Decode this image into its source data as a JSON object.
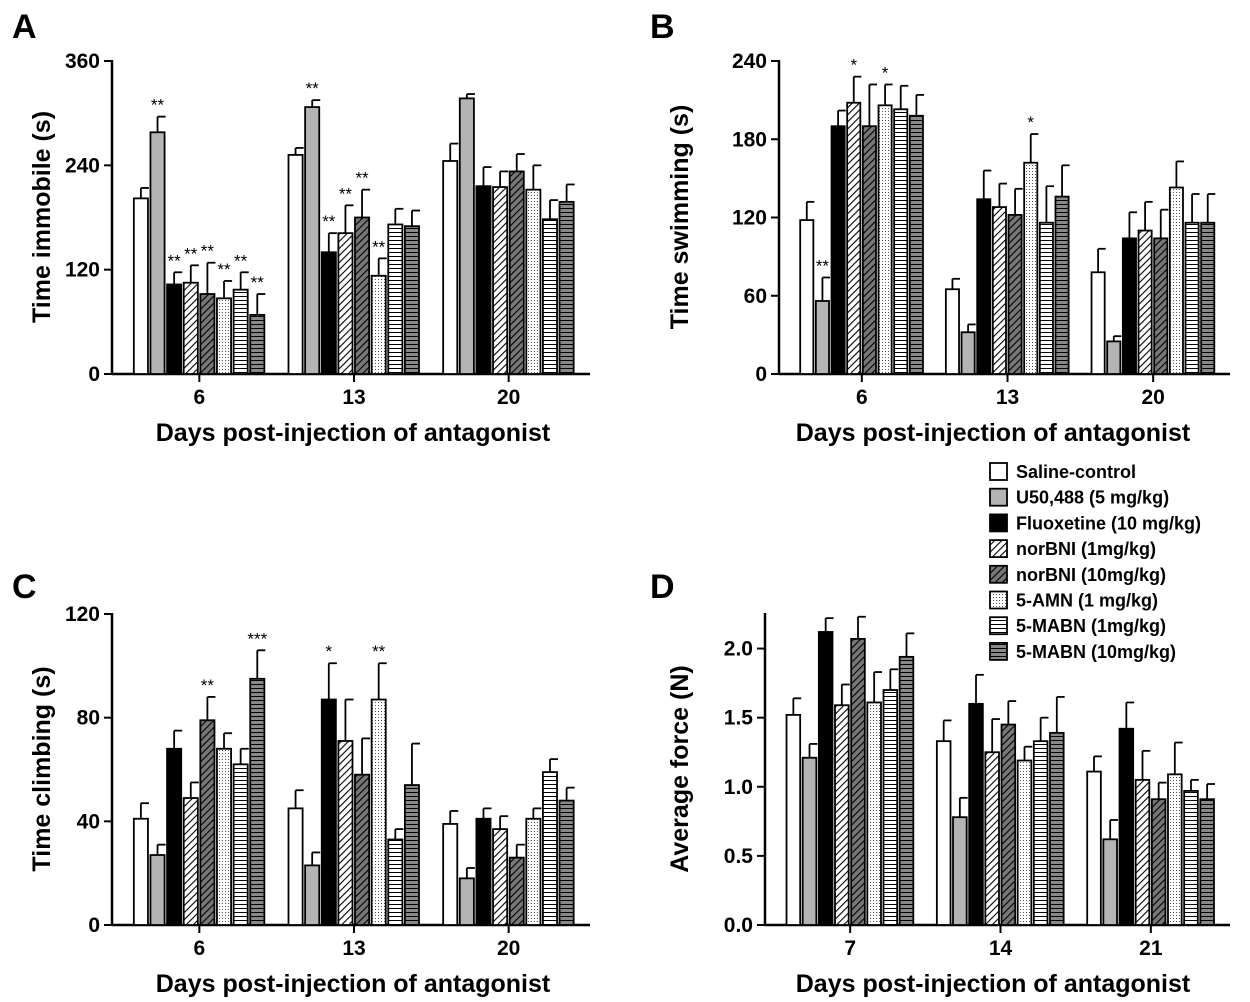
{
  "series_styles": [
    {
      "fill": "white",
      "color": "#ffffff"
    },
    {
      "fill": "gray",
      "color": "#b4b4b4"
    },
    {
      "fill": "black",
      "color": "#000000"
    },
    {
      "fill": "diag",
      "color": "#ffffff"
    },
    {
      "fill": "diag-dark",
      "color": "#777777"
    },
    {
      "fill": "dots",
      "color": "#ffffff"
    },
    {
      "fill": "hlines",
      "color": "#ffffff"
    },
    {
      "fill": "hlines-dark",
      "color": "#888888"
    }
  ],
  "legend": {
    "entries": [
      "Saline-control",
      "U50,488 (5 mg/kg)",
      "Fluoxetine (10 mg/kg)",
      "norBNI (1mg/kg)",
      "norBNI (10mg/kg)",
      "5-AMN (1 mg/kg)",
      "5-MABN (1mg/kg)",
      "5-MABN (10mg/kg)"
    ]
  },
  "chart_data": [
    {
      "panel": "A",
      "type": "bar",
      "categories": [
        "6",
        "13",
        "20"
      ],
      "xlabel": "Days post-injection of antagonist",
      "ylabel": "Time immobile (s)",
      "ylim": [
        0,
        360
      ],
      "yticks": [
        "0",
        "120",
        "240",
        "360"
      ],
      "series": [
        {
          "name": "Saline-control",
          "values": [
            202,
            252,
            245
          ],
          "errors": [
            12,
            8,
            20
          ],
          "sig": [
            "",
            "",
            ""
          ]
        },
        {
          "name": "U50,488 (5 mg/kg)",
          "values": [
            278,
            307,
            317
          ],
          "errors": [
            18,
            8,
            5
          ],
          "sig": [
            "**",
            "**",
            ""
          ]
        },
        {
          "name": "Fluoxetine (10 mg/kg)",
          "values": [
            103,
            140,
            216
          ],
          "errors": [
            14,
            22,
            22
          ],
          "sig": [
            "**",
            "**",
            ""
          ]
        },
        {
          "name": "norBNI (1mg/kg)",
          "values": [
            105,
            162,
            215
          ],
          "errors": [
            20,
            32,
            18
          ],
          "sig": [
            "**",
            "**",
            ""
          ]
        },
        {
          "name": "norBNI (10mg/kg)",
          "values": [
            92,
            180,
            233
          ],
          "errors": [
            36,
            32,
            20
          ],
          "sig": [
            "**",
            "**",
            ""
          ]
        },
        {
          "name": "5-AMN (1 mg/kg)",
          "values": [
            87,
            113,
            212
          ],
          "errors": [
            20,
            20,
            28
          ],
          "sig": [
            "**",
            "**",
            ""
          ]
        },
        {
          "name": "5-MABN (1mg/kg)",
          "values": [
            97,
            172,
            178
          ],
          "errors": [
            20,
            18,
            22
          ],
          "sig": [
            "**",
            "",
            ""
          ]
        },
        {
          "name": "5-MABN (10mg/kg)",
          "values": [
            68,
            170,
            198
          ],
          "errors": [
            24,
            18,
            20
          ],
          "sig": [
            "**",
            "",
            ""
          ]
        }
      ]
    },
    {
      "panel": "B",
      "type": "bar",
      "categories": [
        "6",
        "13",
        "20"
      ],
      "xlabel": "Days post-injection of antagonist",
      "ylabel": "Time swimming (s)",
      "ylim": [
        0,
        240
      ],
      "yticks": [
        "0",
        "60",
        "120",
        "180",
        "240"
      ],
      "series": [
        {
          "name": "Saline-control",
          "values": [
            118,
            65,
            78
          ],
          "errors": [
            14,
            8,
            18
          ],
          "sig": [
            "",
            "",
            ""
          ]
        },
        {
          "name": "U50,488 (5 mg/kg)",
          "values": [
            56,
            32,
            25
          ],
          "errors": [
            18,
            6,
            4
          ],
          "sig": [
            "**",
            "",
            ""
          ]
        },
        {
          "name": "Fluoxetine (10 mg/kg)",
          "values": [
            190,
            134,
            104
          ],
          "errors": [
            12,
            22,
            20
          ],
          "sig": [
            "",
            "",
            ""
          ]
        },
        {
          "name": "norBNI (1mg/kg)",
          "values": [
            208,
            128,
            110
          ],
          "errors": [
            20,
            18,
            22
          ],
          "sig": [
            "*",
            "",
            ""
          ]
        },
        {
          "name": "norBNI (10mg/kg)",
          "values": [
            190,
            122,
            104
          ],
          "errors": [
            32,
            20,
            22
          ],
          "sig": [
            "",
            "",
            ""
          ]
        },
        {
          "name": "5-AMN (1 mg/kg)",
          "values": [
            206,
            162,
            143
          ],
          "errors": [
            16,
            22,
            20
          ],
          "sig": [
            "*",
            "*",
            ""
          ]
        },
        {
          "name": "5-MABN (1mg/kg)",
          "values": [
            203,
            116,
            116
          ],
          "errors": [
            18,
            28,
            22
          ],
          "sig": [
            "",
            "",
            ""
          ]
        },
        {
          "name": "5-MABN (10mg/kg)",
          "values": [
            198,
            136,
            116
          ],
          "errors": [
            16,
            24,
            22
          ],
          "sig": [
            "",
            "",
            ""
          ]
        }
      ]
    },
    {
      "panel": "C",
      "type": "bar",
      "categories": [
        "6",
        "13",
        "20"
      ],
      "xlabel": "Days post-injection of antagonist",
      "ylabel": "Time climbing (s)",
      "ylim": [
        0,
        120
      ],
      "yticks": [
        "0",
        "40",
        "80",
        "120"
      ],
      "series": [
        {
          "name": "Saline-control",
          "values": [
            41,
            45,
            39
          ],
          "errors": [
            6,
            7,
            5
          ],
          "sig": [
            "",
            "",
            ""
          ]
        },
        {
          "name": "U50,488 (5 mg/kg)",
          "values": [
            27,
            23,
            18
          ],
          "errors": [
            4,
            5,
            4
          ],
          "sig": [
            "",
            "",
            ""
          ]
        },
        {
          "name": "Fluoxetine (10 mg/kg)",
          "values": [
            68,
            87,
            41
          ],
          "errors": [
            7,
            14,
            4
          ],
          "sig": [
            "",
            "*",
            ""
          ]
        },
        {
          "name": "norBNI (1mg/kg)",
          "values": [
            49,
            71,
            37
          ],
          "errors": [
            6,
            16,
            5
          ],
          "sig": [
            "",
            "",
            ""
          ]
        },
        {
          "name": "norBNI (10mg/kg)",
          "values": [
            79,
            58,
            26
          ],
          "errors": [
            9,
            14,
            5
          ],
          "sig": [
            "**",
            "",
            ""
          ]
        },
        {
          "name": "5-AMN (1 mg/kg)",
          "values": [
            68,
            87,
            41
          ],
          "errors": [
            6,
            14,
            4
          ],
          "sig": [
            "",
            "**",
            ""
          ]
        },
        {
          "name": "5-MABN (1mg/kg)",
          "values": [
            62,
            33,
            59
          ],
          "errors": [
            6,
            4,
            5
          ],
          "sig": [
            "",
            "",
            ""
          ]
        },
        {
          "name": "5-MABN (10mg/kg)",
          "values": [
            95,
            54,
            48
          ],
          "errors": [
            11,
            16,
            5
          ],
          "sig": [
            "***",
            "",
            ""
          ]
        }
      ]
    },
    {
      "panel": "D",
      "type": "bar",
      "categories": [
        "7",
        "14",
        "21"
      ],
      "xlabel": "Days post-injection of  antagonist",
      "ylabel": "Average force (N)",
      "ylim": [
        0,
        2.25
      ],
      "yticks": [
        "0.0",
        "0.5",
        "1.0",
        "1.5",
        "2.0"
      ],
      "series": [
        {
          "name": "Saline-control",
          "values": [
            1.52,
            1.33,
            1.11
          ],
          "errors": [
            0.12,
            0.15,
            0.11
          ],
          "sig": [
            "",
            "",
            ""
          ]
        },
        {
          "name": "U50,488 (5 mg/kg)",
          "values": [
            1.21,
            0.78,
            0.62
          ],
          "errors": [
            0.1,
            0.14,
            0.14
          ],
          "sig": [
            "",
            "",
            ""
          ]
        },
        {
          "name": "Fluoxetine (10 mg/kg)",
          "values": [
            2.12,
            1.6,
            1.42
          ],
          "errors": [
            0.1,
            0.21,
            0.19
          ],
          "sig": [
            "",
            "",
            ""
          ]
        },
        {
          "name": "norBNI (1mg/kg)",
          "values": [
            1.59,
            1.25,
            1.05
          ],
          "errors": [
            0.15,
            0.24,
            0.21
          ],
          "sig": [
            "",
            "",
            ""
          ]
        },
        {
          "name": "norBNI (10mg/kg)",
          "values": [
            2.07,
            1.45,
            0.91
          ],
          "errors": [
            0.16,
            0.17,
            0.12
          ],
          "sig": [
            "",
            "",
            ""
          ]
        },
        {
          "name": "5-AMN (1 mg/kg)",
          "values": [
            1.61,
            1.19,
            1.09
          ],
          "errors": [
            0.22,
            0.1,
            0.23
          ],
          "sig": [
            "",
            "",
            ""
          ]
        },
        {
          "name": "5-MABN (1mg/kg)",
          "values": [
            1.7,
            1.33,
            0.97
          ],
          "errors": [
            0.15,
            0.17,
            0.08
          ],
          "sig": [
            "",
            "",
            ""
          ]
        },
        {
          "name": "5-MABN (10mg/kg)",
          "values": [
            1.94,
            1.39,
            0.91
          ],
          "errors": [
            0.17,
            0.26,
            0.11
          ],
          "sig": [
            "",
            "",
            ""
          ]
        }
      ]
    }
  ]
}
